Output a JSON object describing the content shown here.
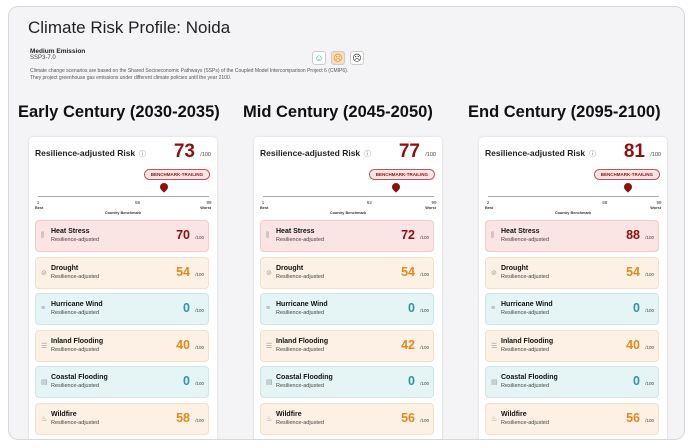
{
  "title": "Climate Risk Profile: Noida",
  "scenario": {
    "name": "Medium Emission",
    "code": "SSP3-7.0",
    "description": "Climate change scenarios are based on the Shared Socioeconomic Pathways (SSPs) of the Coupled Model Intercomparison Project 6 (CMIP6). They project greenhouse gas emissions under different climate policies until the year 2100.",
    "options": [
      {
        "icon": "smile-icon",
        "color": "#2aa3a3"
      },
      {
        "icon": "neutral-face-icon",
        "color": "#e08a1e",
        "selected": true
      },
      {
        "icon": "frown-icon",
        "color": "#222"
      }
    ]
  },
  "labels": {
    "risk": "Resilience-adjusted Risk",
    "out_of": "/100",
    "badge": "BENCHMARK-TRAILING",
    "best": "Best",
    "worst": "Worst",
    "benchmark": "Country Benchmark",
    "sub": "Resilience-adjusted"
  },
  "colors": {
    "high": "#8b1010",
    "medium": "#e08a1e",
    "low": "#2a9a9a"
  },
  "periods": [
    {
      "heading": "Early Century (2030-2035)",
      "score": 73,
      "scale_min": "1",
      "benchmark": "58",
      "scale_max": "99",
      "hazards": [
        {
          "name": "Heat Stress",
          "value": 70
        },
        {
          "name": "Drought",
          "value": 54
        },
        {
          "name": "Hurricane Wind",
          "value": 0
        },
        {
          "name": "Inland Flooding",
          "value": 40
        },
        {
          "name": "Coastal Flooding",
          "value": 0
        },
        {
          "name": "Wildfire",
          "value": 58
        }
      ]
    },
    {
      "heading": "Mid Century (2045-2050)",
      "score": 77,
      "scale_min": "1",
      "benchmark": "62",
      "scale_max": "99",
      "hazards": [
        {
          "name": "Heat Stress",
          "value": 72
        },
        {
          "name": "Drought",
          "value": 54
        },
        {
          "name": "Hurricane Wind",
          "value": 0
        },
        {
          "name": "Inland Flooding",
          "value": 42
        },
        {
          "name": "Coastal Flooding",
          "value": 0
        },
        {
          "name": "Wildfire",
          "value": 56
        }
      ]
    },
    {
      "heading": "End Century (2095-2100)",
      "score": 81,
      "scale_min": "2",
      "benchmark": "68",
      "scale_max": "99",
      "hazards": [
        {
          "name": "Heat Stress",
          "value": 88
        },
        {
          "name": "Drought",
          "value": 54
        },
        {
          "name": "Hurricane Wind",
          "value": 0
        },
        {
          "name": "Inland Flooding",
          "value": 40
        },
        {
          "name": "Coastal Flooding",
          "value": 0
        },
        {
          "name": "Wildfire",
          "value": 56
        }
      ]
    }
  ]
}
